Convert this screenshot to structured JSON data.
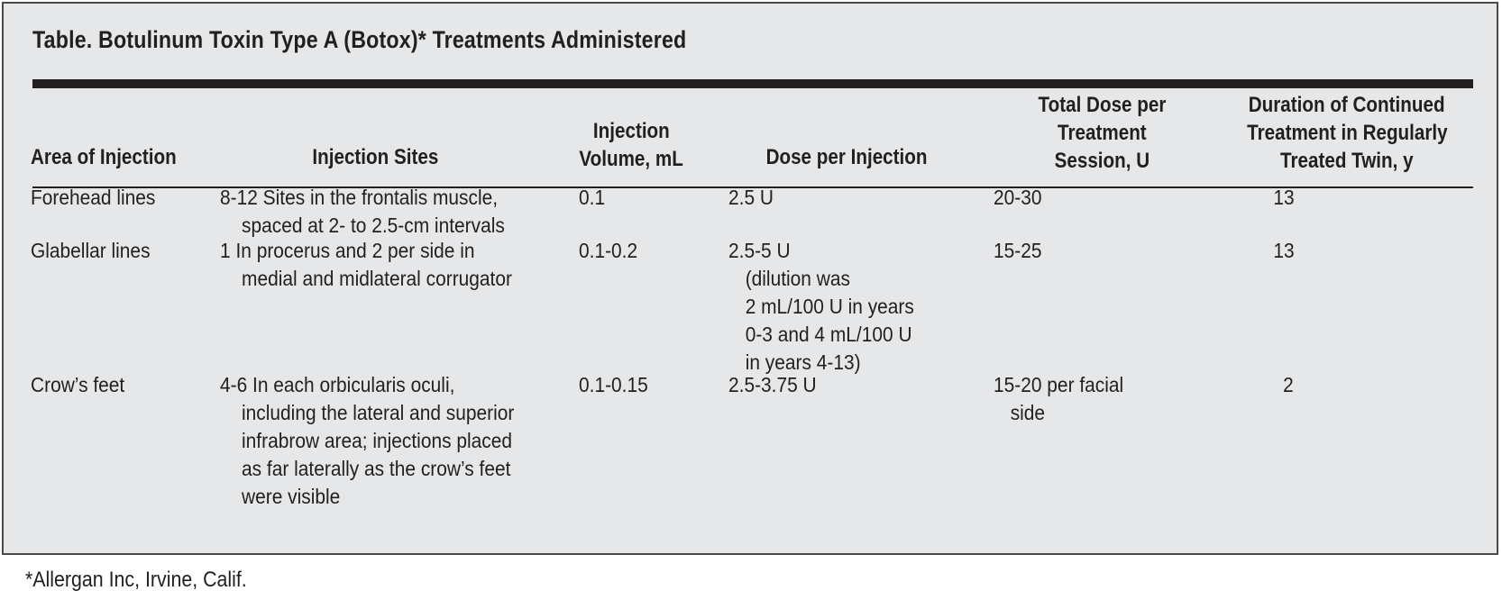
{
  "table": {
    "title": "Table. Botulinum Toxin Type A (Botox)* Treatments Administered",
    "headers": [
      [
        "Area of Injection"
      ],
      [
        "Injection Sites"
      ],
      [
        "Injection",
        "Volume, mL"
      ],
      [
        "Dose per Injection"
      ],
      [
        "Total Dose per",
        "Treatment",
        "Session, U"
      ],
      [
        "Duration of Continued",
        "Treatment in Regularly",
        "Treated Twin, y"
      ]
    ],
    "rows": [
      {
        "area": "Forehead lines",
        "sites": [
          "8-12 Sites in the frontalis muscle,",
          "spaced at 2- to 2.5-cm intervals"
        ],
        "volume": "0.1",
        "dose": [
          "2.5 U"
        ],
        "total": [
          "20-30"
        ],
        "duration": "13"
      },
      {
        "area": "Glabellar lines",
        "sites": [
          "1 In procerus and 2 per side in",
          "medial and midlateral corrugator"
        ],
        "volume": "0.1-0.2",
        "dose": [
          "2.5-5 U",
          "(dilution was",
          "2 mL/100 U in years",
          "0-3 and 4 mL/100 U",
          "in years 4-13)"
        ],
        "total": [
          "15-25"
        ],
        "duration": "13"
      },
      {
        "area": "Crow’s feet",
        "sites": [
          "4-6 In each orbicularis oculi,",
          "including the lateral and superior",
          "infrabrow area; injections placed",
          "as far laterally as the crow’s feet",
          "were visible"
        ],
        "volume": "0.1-0.15",
        "dose": [
          "2.5-3.75 U"
        ],
        "total": [
          "15-20 per facial",
          "side"
        ],
        "duration": "2"
      }
    ]
  },
  "footnote": "*Allergan Inc, Irvine, Calif."
}
